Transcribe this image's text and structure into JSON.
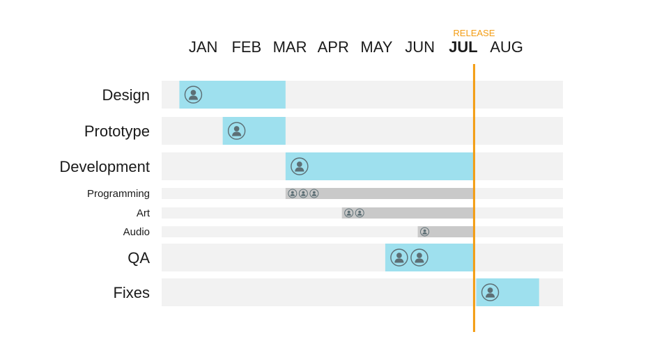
{
  "chart_data": {
    "type": "gantt",
    "title": "",
    "months": [
      "JAN",
      "FEB",
      "MAR",
      "APR",
      "MAY",
      "JUN",
      "JUL",
      "AUG"
    ],
    "highlight_month": "JUL",
    "marker": {
      "label": "RELEASE",
      "month_position": 7.0,
      "color": "#f39c12"
    },
    "colors": {
      "main_bar": "#9ee0ee",
      "sub_bar": "#c9c9c9",
      "track": "#f2f2f2",
      "icon": "#5d6f75",
      "text": "#1a1a1a"
    },
    "tasks": [
      {
        "label": "Design",
        "level": "main",
        "start": 0.2,
        "end": 2.65,
        "people": 1
      },
      {
        "label": "Prototype",
        "level": "main",
        "start": 1.2,
        "end": 2.65,
        "people": 1
      },
      {
        "label": "Development",
        "level": "main",
        "start": 2.65,
        "end": 7.0,
        "people": 1
      },
      {
        "label": "Programming",
        "level": "sub",
        "start": 2.65,
        "end": 7.0,
        "people": 3
      },
      {
        "label": "Art",
        "level": "sub",
        "start": 3.95,
        "end": 7.0,
        "people": 2
      },
      {
        "label": "Audio",
        "level": "sub",
        "start": 5.7,
        "end": 7.0,
        "people": 1
      },
      {
        "label": "QA",
        "level": "main",
        "start": 4.95,
        "end": 7.0,
        "people": 2
      },
      {
        "label": "Fixes",
        "level": "main",
        "start": 7.05,
        "end": 8.5,
        "people": 1
      }
    ]
  }
}
